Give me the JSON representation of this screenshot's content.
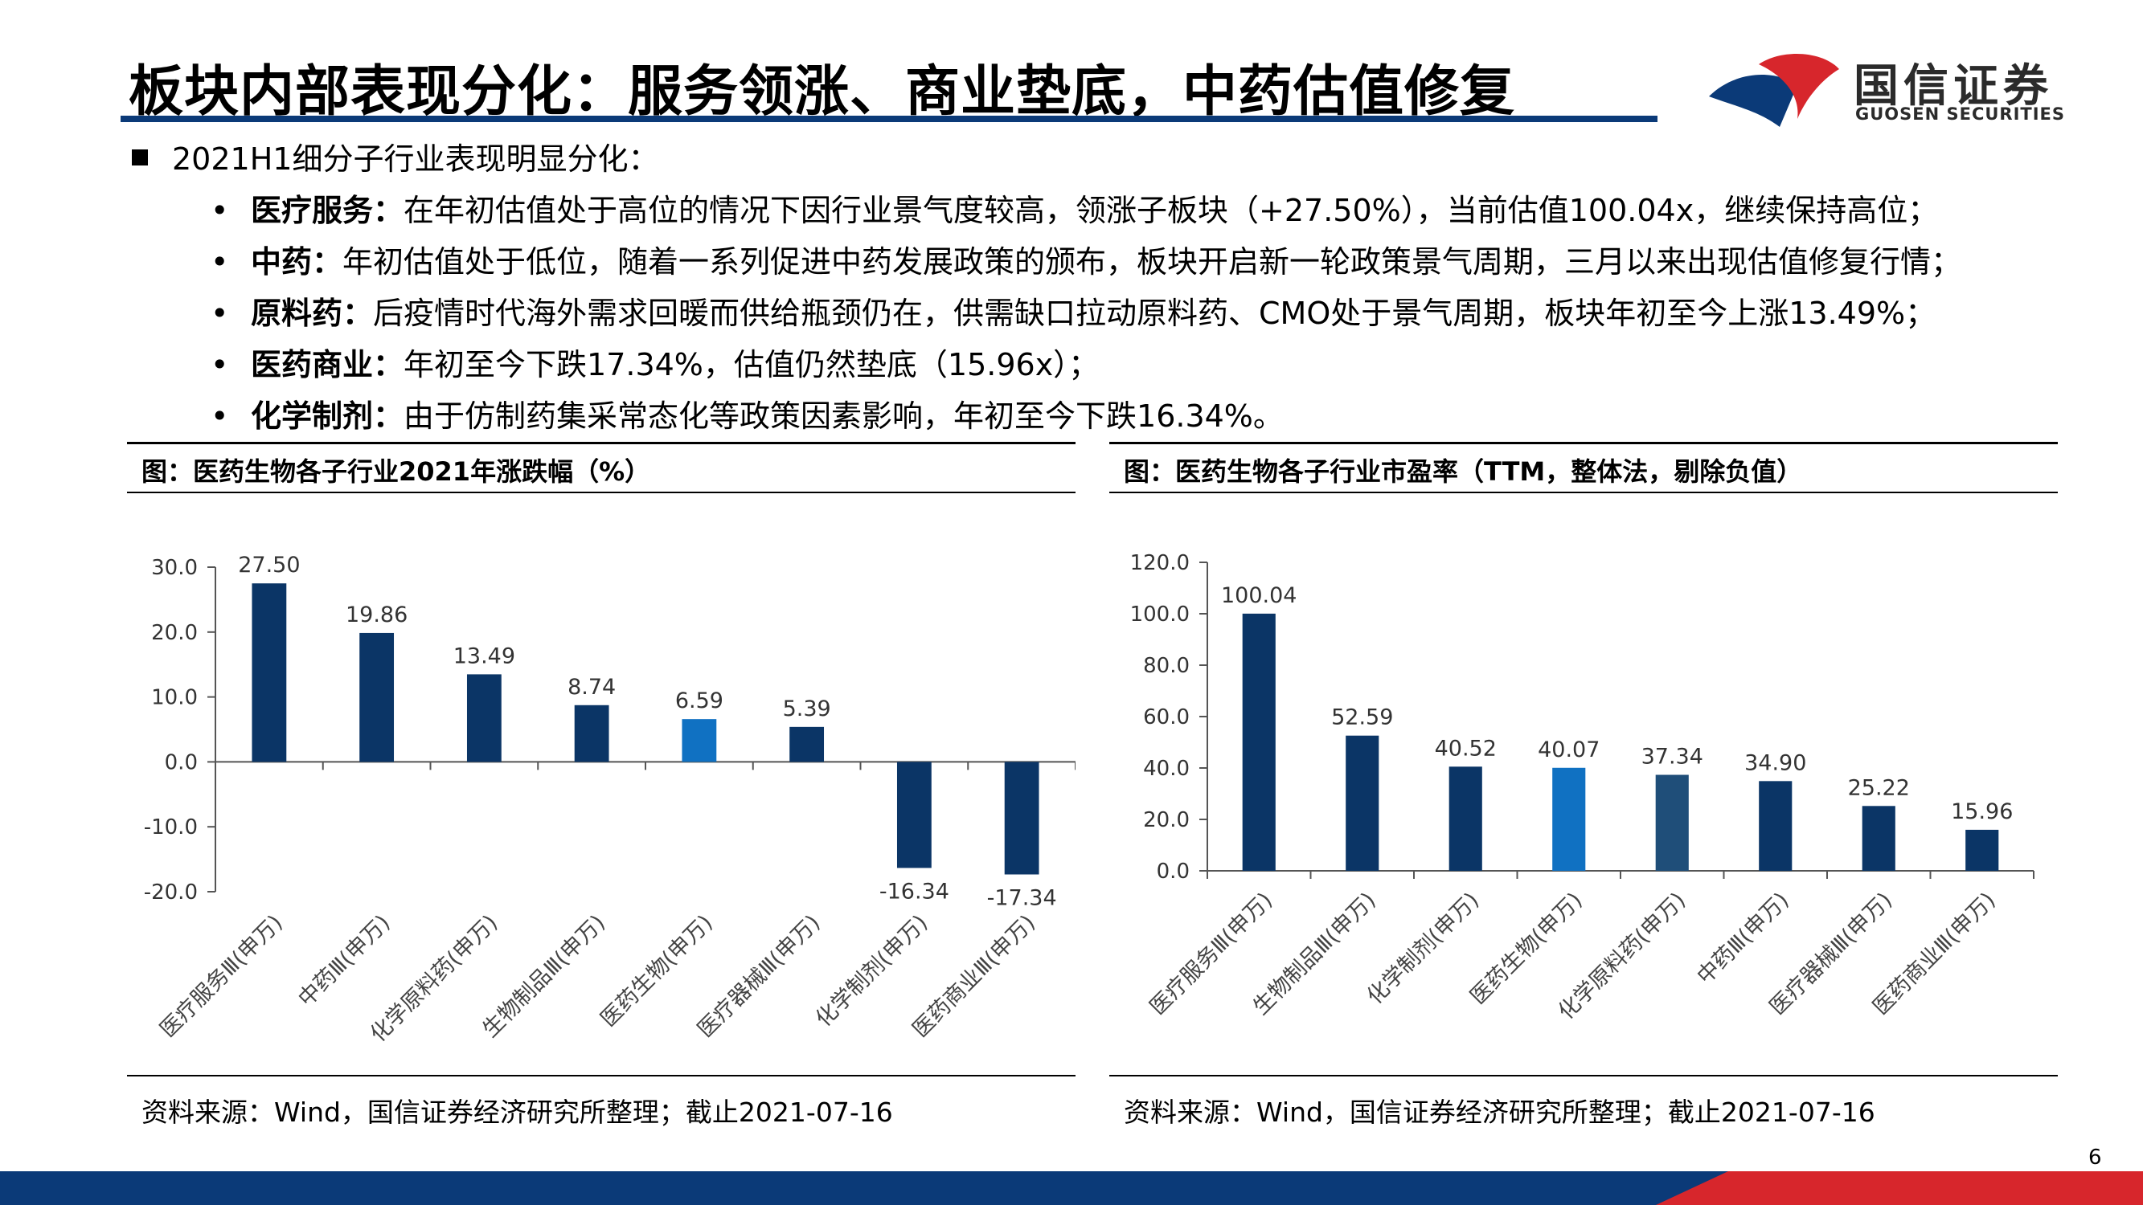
{
  "header": {
    "title": "板块内部表现分化：服务领涨、商业垫底，中药估值修复",
    "logo_cn": "国信证券",
    "logo_en": "GUOSEN SECURITIES"
  },
  "bullets": {
    "main": "2021H1细分子行业表现明显分化：",
    "subs": [
      {
        "label": "医疗服务：",
        "text": "在年初估值处于高位的情况下因行业景气度较高，领涨子板块（+27.50%），当前估值100.04x，继续保持高位；"
      },
      {
        "label": "中药：",
        "text": "年初估值处于低位，随着一系列促进中药发展政策的颁布，板块开启新一轮政策景气周期，三月以来出现估值修复行情；"
      },
      {
        "label": "原料药：",
        "text": "后疫情时代海外需求回暖而供给瓶颈仍在，供需缺口拉动原料药、CMO处于景气周期，板块年初至今上涨13.49%；"
      },
      {
        "label": "医药商业：",
        "text": "年初至今下跌17.34%，估值仍然垫底（15.96x）；"
      },
      {
        "label": "化学制剂：",
        "text": "由于仿制药集采常态化等政策因素影响，年初至今下跌16.34%。"
      }
    ],
    "bullet_glyph": "•"
  },
  "chart_data": [
    {
      "type": "bar",
      "title": "图：医药生物各子行业2021年涨跌幅（%）",
      "categories": [
        "医疗服务Ⅲ(申万)",
        "中药Ⅲ(申万)",
        "化学原料药(申万)",
        "生物制品Ⅲ(申万)",
        "医药生物(申万)",
        "医疗器械Ⅲ(申万)",
        "化学制剂(申万)",
        "医药商业Ⅲ(申万)"
      ],
      "values": [
        27.5,
        19.86,
        13.49,
        8.74,
        6.59,
        5.39,
        -16.34,
        -17.34
      ],
      "value_labels": [
        "27.50",
        "19.86",
        "13.49",
        "8.74",
        "6.59",
        "5.39",
        "-16.34",
        "-17.34"
      ],
      "ylim": [
        -20,
        30
      ],
      "yticks": [
        "30.0",
        "20.0",
        "10.0",
        "0.0",
        "-10.0",
        "-20.0"
      ],
      "bar_colors": [
        "#0b3566",
        "#0b3566",
        "#0b3566",
        "#0b3566",
        "#1071c2",
        "#0b3566",
        "#0b3566",
        "#0b3566"
      ],
      "source": "资料来源：Wind，国信证券经济研究所整理；截止2021-07-16"
    },
    {
      "type": "bar",
      "title": "图：医药生物各子行业市盈率（TTM，整体法，剔除负值）",
      "categories": [
        "医疗服务Ⅲ(申万)",
        "生物制品Ⅲ(申万)",
        "化学制剂(申万)",
        "医药生物(申万)",
        "化学原料药(申万)",
        "中药Ⅲ(申万)",
        "医疗器械Ⅲ(申万)",
        "医药商业Ⅲ(申万)"
      ],
      "values": [
        100.04,
        52.59,
        40.52,
        40.07,
        37.34,
        34.9,
        25.22,
        15.96
      ],
      "value_labels": [
        "100.04",
        "52.59",
        "40.52",
        "40.07",
        "37.34",
        "34.90",
        "25.22",
        "15.96"
      ],
      "ylim": [
        0,
        120
      ],
      "yticks": [
        "120.0",
        "100.0",
        "80.0",
        "60.0",
        "40.0",
        "20.0",
        "0.0"
      ],
      "bar_colors": [
        "#0b3566",
        "#0b3566",
        "#0b3566",
        "#1071c2",
        "#1f4e79",
        "#0b3566",
        "#0b3566",
        "#0b3566"
      ],
      "source": "资料来源：Wind，国信证券经济研究所整理；截止2021-07-16"
    }
  ],
  "page": "6",
  "colors": {
    "brand_blue": "#0b3a78",
    "brand_red": "#d7262c",
    "axis": "#555555"
  }
}
